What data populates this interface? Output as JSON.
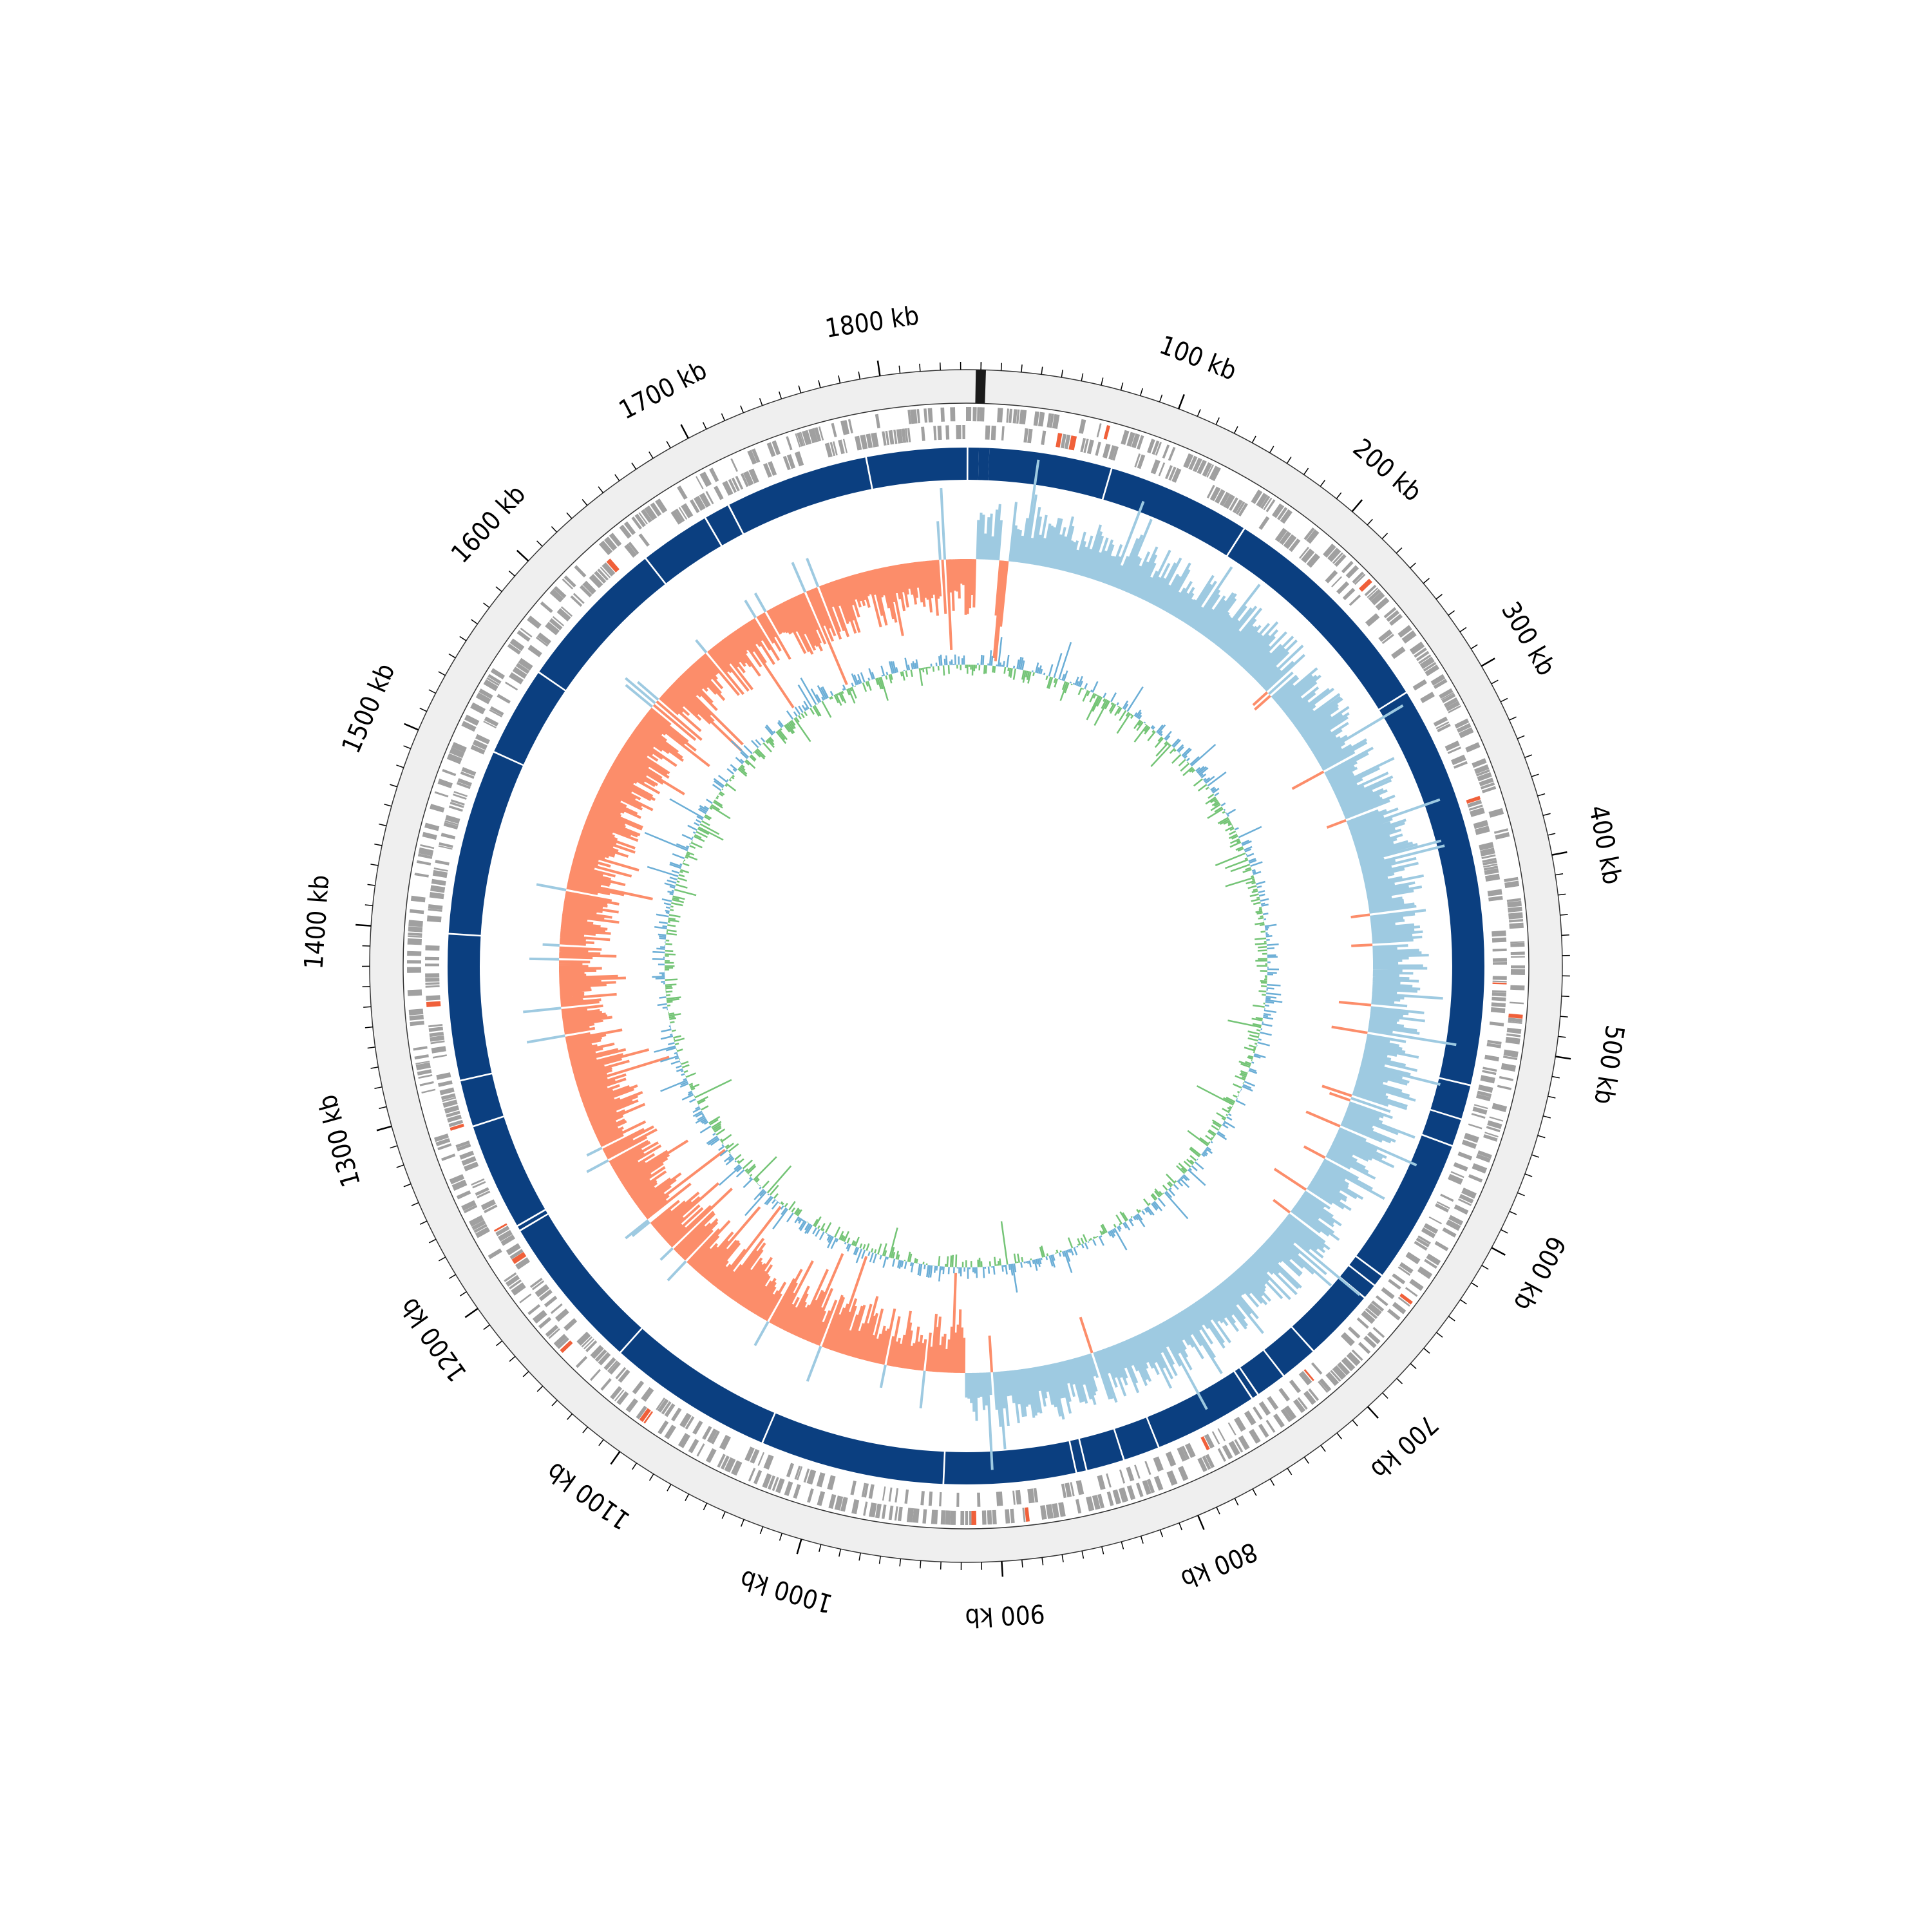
{
  "chart_data": {
    "type": "circular-genome",
    "genome_length_kb": 1850,
    "tick_labels": [
      "100 kb",
      "200 kb",
      "300 kb",
      "400 kb",
      "500 kb",
      "600 kb",
      "700 kb",
      "800 kb",
      "900 kb",
      "1000 kb",
      "1100 kb",
      "1200 kb",
      "1300 kb",
      "1400 kb",
      "1500 kb",
      "1600 kb",
      "1700 kb",
      "1800 kb"
    ],
    "major_tick_kb": [
      100,
      200,
      300,
      400,
      500,
      600,
      700,
      800,
      900,
      1000,
      1100,
      1200,
      1300,
      1400,
      1500,
      1600,
      1700,
      1800
    ],
    "minor_tick_step_kb": 10,
    "contig_segments_kb": [
      [
        0,
        6
      ],
      [
        6,
        76
      ],
      [
        77,
        159
      ],
      [
        160,
        291
      ],
      [
        292,
        523
      ],
      [
        524,
        543
      ],
      [
        544,
        559
      ],
      [
        560,
        643
      ],
      [
        644,
        650
      ],
      [
        651,
        659
      ],
      [
        660,
        701
      ],
      [
        702,
        723
      ],
      [
        724,
        741
      ],
      [
        742,
        745
      ],
      [
        746,
        805
      ],
      [
        806,
        826
      ],
      [
        827,
        848
      ],
      [
        849,
        854
      ],
      [
        855,
        930
      ],
      [
        931,
        1036
      ],
      [
        1037,
        1132
      ],
      [
        1133,
        1222
      ],
      [
        1223,
        1225
      ],
      [
        1226,
        1287
      ],
      [
        1288,
        1314
      ],
      [
        1315,
        1398
      ],
      [
        1399,
        1505
      ],
      [
        1506,
        1557
      ],
      [
        1558,
        1646
      ],
      [
        1647,
        1687
      ],
      [
        1688,
        1702
      ],
      [
        1703,
        1785
      ],
      [
        1786,
        1843
      ],
      [
        1844,
        1850
      ]
    ],
    "gc_skew": {
      "positive_region_kb": [
        [
          0,
          16
        ],
        [
          22,
          918
        ]
      ],
      "negative_region_kb": [
        [
          918,
          1850
        ]
      ]
    },
    "colors": {
      "ruler_band": "#efefef",
      "genes": "#a0a0a0",
      "rna_genes": "#f0603a",
      "contigs": "#0b3f80",
      "gc_skew_positive": "#9ecae1",
      "gc_skew_negative": "#fc8d6a",
      "gc_content_outer": "#6baed6",
      "gc_content_inner": "#74c476"
    },
    "legend": "none",
    "grid": false
  }
}
